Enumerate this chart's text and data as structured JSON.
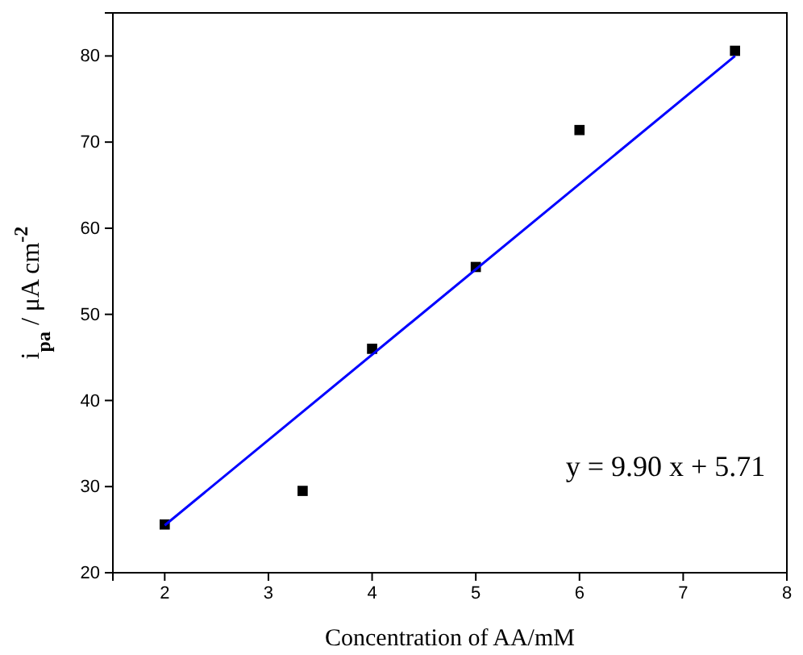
{
  "chart_data": {
    "type": "scatter",
    "xlabel": "Concentration of AA/mM",
    "ylabel": "i$_{pa}$ / μA cm$^{-2}$",
    "xlim": [
      1.5,
      8
    ],
    "xticks": [
      2,
      3,
      4,
      5,
      6,
      7,
      8
    ],
    "ylim": [
      20,
      85
    ],
    "yticks": [
      20,
      30,
      40,
      50,
      60,
      70,
      80
    ],
    "marker": "square",
    "grid": false,
    "series": [
      {
        "color": "#000000",
        "x": [
          2,
          3.33,
          4,
          5,
          6,
          7.5
        ],
        "values": [
          25.6,
          29.5,
          46.0,
          55.5,
          71.4,
          80.6
        ]
      },
      {
        "type": "line",
        "color": "#0000ff",
        "marker": "none",
        "x": [
          2,
          7.5
        ],
        "values": [
          25.5,
          80.0
        ]
      }
    ],
    "annotations": [
      "y = 9.90 x + 5.71"
    ]
  }
}
